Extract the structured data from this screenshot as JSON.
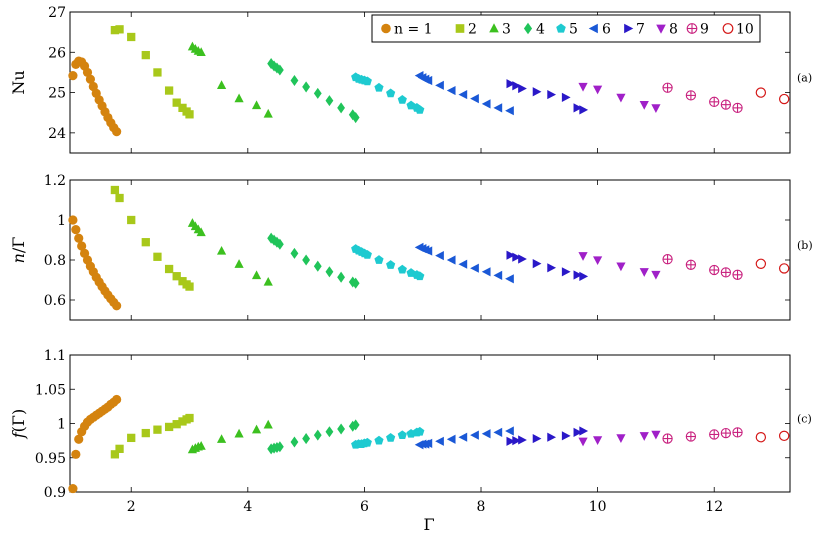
{
  "figure": {
    "xlabel": "Γ",
    "legend_prefix": "n",
    "legend_equals": "="
  },
  "chart_data": [
    {
      "type": "scatter",
      "panel_tag": "(a)",
      "ylabel": "Nu",
      "xlim": [
        0.95,
        13.3
      ],
      "ylim": [
        23.5,
        27
      ],
      "xticks": [
        2,
        4,
        6,
        8,
        10,
        12
      ],
      "yticks": [
        24,
        25,
        26,
        27
      ],
      "grid": false,
      "legend_placement": "top-right",
      "series": [
        {
          "name": "1",
          "color": "#d4830f",
          "marker": "circle",
          "x": [
            1.0,
            1.05,
            1.1,
            1.15,
            1.2,
            1.25,
            1.3,
            1.35,
            1.4,
            1.45,
            1.5,
            1.55,
            1.6,
            1.65,
            1.7,
            1.75
          ],
          "y": [
            25.42,
            25.7,
            25.78,
            25.76,
            25.66,
            25.5,
            25.33,
            25.15,
            24.98,
            24.82,
            24.67,
            24.52,
            24.38,
            24.25,
            24.13,
            24.03
          ]
        },
        {
          "name": "2",
          "color": "#a8c81a",
          "marker": "square",
          "x": [
            1.72,
            1.8,
            2.0,
            2.25,
            2.45,
            2.65,
            2.78,
            2.88,
            2.95,
            3.0
          ],
          "y": [
            26.55,
            26.57,
            26.38,
            25.93,
            25.5,
            25.05,
            24.75,
            24.62,
            24.53,
            24.46
          ]
        },
        {
          "name": "3",
          "color": "#3cc01f",
          "marker": "triangle-up",
          "x": [
            3.05,
            3.1,
            3.15,
            3.2,
            3.55,
            3.85,
            4.15,
            4.35
          ],
          "y": [
            26.14,
            26.08,
            26.03,
            26.0,
            25.18,
            24.85,
            24.68,
            24.47
          ]
        },
        {
          "name": "4",
          "color": "#20c45a",
          "marker": "diamond",
          "x": [
            4.4,
            4.45,
            4.5,
            4.55,
            4.8,
            5.0,
            5.2,
            5.4,
            5.6,
            5.8,
            5.85
          ],
          "y": [
            25.72,
            25.66,
            25.61,
            25.56,
            25.3,
            25.14,
            24.98,
            24.8,
            24.62,
            24.45,
            24.38
          ]
        },
        {
          "name": "5",
          "color": "#1ecad0",
          "marker": "pentagon",
          "x": [
            5.85,
            5.9,
            5.95,
            6.0,
            6.05,
            6.25,
            6.45,
            6.65,
            6.8,
            6.9,
            6.95
          ],
          "y": [
            25.38,
            25.34,
            25.32,
            25.3,
            25.28,
            25.12,
            24.98,
            24.82,
            24.68,
            24.62,
            24.57
          ]
        },
        {
          "name": "6",
          "color": "#1a58d6",
          "marker": "triangle-left",
          "x": [
            6.95,
            7.0,
            7.05,
            7.1,
            7.3,
            7.5,
            7.7,
            7.9,
            8.1,
            8.3,
            8.5
          ],
          "y": [
            25.42,
            25.37,
            25.33,
            25.3,
            25.18,
            25.05,
            24.95,
            24.85,
            24.72,
            24.62,
            24.55
          ]
        },
        {
          "name": "7",
          "color": "#2a18c8",
          "marker": "triangle-right",
          "x": [
            8.5,
            8.6,
            8.7,
            8.95,
            9.2,
            9.45,
            9.65,
            9.75
          ],
          "y": [
            25.22,
            25.17,
            25.1,
            25.02,
            24.95,
            24.88,
            24.62,
            24.57
          ]
        },
        {
          "name": "8",
          "color": "#a020c8",
          "marker": "triangle-down",
          "x": [
            9.75,
            10.0,
            10.4,
            10.8,
            11.0
          ],
          "y": [
            25.15,
            25.08,
            24.88,
            24.7,
            24.62
          ]
        },
        {
          "name": "9",
          "color": "#c8207e",
          "marker": "circle-plus",
          "x": [
            11.2,
            11.6,
            12.0,
            12.2,
            12.4
          ],
          "y": [
            25.12,
            24.93,
            24.77,
            24.7,
            24.62
          ]
        },
        {
          "name": "10",
          "color": "#d41818",
          "marker": "circle-open",
          "x": [
            12.8,
            13.2
          ],
          "y": [
            25.0,
            24.84
          ]
        }
      ]
    },
    {
      "type": "scatter",
      "panel_tag": "(b)",
      "ylabel": "n/Γ",
      "xlim": [
        0.95,
        13.3
      ],
      "ylim": [
        0.5,
        1.2
      ],
      "xticks": [
        2,
        4,
        6,
        8,
        10,
        12
      ],
      "yticks": [
        0.6,
        0.8,
        1,
        1.2
      ],
      "yticklabels": [
        "0.6",
        "0.8",
        "1",
        "1.2"
      ],
      "grid": false,
      "series": [
        {
          "name": "1",
          "color": "#d4830f",
          "marker": "circle",
          "x": [
            1.0,
            1.05,
            1.1,
            1.15,
            1.2,
            1.25,
            1.3,
            1.35,
            1.4,
            1.45,
            1.5,
            1.55,
            1.6,
            1.65,
            1.7,
            1.75
          ],
          "y": [
            1.0,
            0.952,
            0.909,
            0.87,
            0.833,
            0.8,
            0.769,
            0.741,
            0.714,
            0.69,
            0.667,
            0.645,
            0.625,
            0.606,
            0.588,
            0.571
          ]
        },
        {
          "name": "2",
          "color": "#a8c81a",
          "marker": "square",
          "x": [
            1.72,
            1.8,
            2.0,
            2.25,
            2.45,
            2.65,
            2.78,
            2.88,
            2.95,
            3.0
          ],
          "y": [
            1.15,
            1.11,
            1.0,
            0.889,
            0.816,
            0.755,
            0.719,
            0.694,
            0.678,
            0.667
          ]
        },
        {
          "name": "3",
          "color": "#3cc01f",
          "marker": "triangle-up",
          "x": [
            3.05,
            3.1,
            3.15,
            3.2,
            3.55,
            3.85,
            4.15,
            4.35
          ],
          "y": [
            0.984,
            0.968,
            0.952,
            0.938,
            0.845,
            0.779,
            0.723,
            0.69
          ]
        },
        {
          "name": "4",
          "color": "#20c45a",
          "marker": "diamond",
          "x": [
            4.4,
            4.45,
            4.5,
            4.55,
            4.8,
            5.0,
            5.2,
            5.4,
            5.6,
            5.8,
            5.85
          ],
          "y": [
            0.909,
            0.899,
            0.889,
            0.879,
            0.833,
            0.8,
            0.769,
            0.741,
            0.714,
            0.69,
            0.684
          ]
        },
        {
          "name": "5",
          "color": "#1ecad0",
          "marker": "pentagon",
          "x": [
            5.85,
            5.9,
            5.95,
            6.0,
            6.05,
            6.25,
            6.45,
            6.65,
            6.8,
            6.9,
            6.95
          ],
          "y": [
            0.855,
            0.847,
            0.84,
            0.833,
            0.826,
            0.8,
            0.775,
            0.752,
            0.735,
            0.725,
            0.719
          ]
        },
        {
          "name": "6",
          "color": "#1a58d6",
          "marker": "triangle-left",
          "x": [
            6.95,
            7.0,
            7.05,
            7.1,
            7.3,
            7.5,
            7.7,
            7.9,
            8.1,
            8.3,
            8.5
          ],
          "y": [
            0.863,
            0.857,
            0.851,
            0.845,
            0.822,
            0.8,
            0.779,
            0.759,
            0.741,
            0.723,
            0.706
          ]
        },
        {
          "name": "7",
          "color": "#2a18c8",
          "marker": "triangle-right",
          "x": [
            8.5,
            8.6,
            8.7,
            8.95,
            9.2,
            9.45,
            9.65,
            9.75
          ],
          "y": [
            0.824,
            0.814,
            0.805,
            0.782,
            0.761,
            0.741,
            0.725,
            0.718
          ]
        },
        {
          "name": "8",
          "color": "#a020c8",
          "marker": "triangle-down",
          "x": [
            9.75,
            10.0,
            10.4,
            10.8,
            11.0
          ],
          "y": [
            0.821,
            0.8,
            0.769,
            0.741,
            0.727
          ]
        },
        {
          "name": "9",
          "color": "#c8207e",
          "marker": "circle-plus",
          "x": [
            11.2,
            11.6,
            12.0,
            12.2,
            12.4
          ],
          "y": [
            0.804,
            0.776,
            0.75,
            0.738,
            0.726
          ]
        },
        {
          "name": "10",
          "color": "#d41818",
          "marker": "circle-open",
          "x": [
            12.8,
            13.2
          ],
          "y": [
            0.781,
            0.758
          ]
        }
      ]
    },
    {
      "type": "scatter",
      "panel_tag": "(c)",
      "ylabel": "f(Γ)",
      "xlim": [
        0.95,
        13.3
      ],
      "ylim": [
        0.9,
        1.1
      ],
      "xticks": [
        2,
        4,
        6,
        8,
        10,
        12
      ],
      "xticklabels": [
        "2",
        "4",
        "6",
        "8",
        "10",
        "12"
      ],
      "yticks": [
        0.9,
        0.95,
        1,
        1.05,
        1.1
      ],
      "yticklabels": [
        "0.9",
        "0.95",
        "1",
        "1.05",
        "1.1"
      ],
      "grid": false,
      "series": [
        {
          "name": "1",
          "color": "#d4830f",
          "marker": "circle",
          "x": [
            1.0,
            1.05,
            1.1,
            1.15,
            1.2,
            1.25,
            1.3,
            1.35,
            1.4,
            1.45,
            1.5,
            1.55,
            1.6,
            1.65,
            1.7,
            1.75
          ],
          "y": [
            0.905,
            0.955,
            0.977,
            0.988,
            0.996,
            1.002,
            1.006,
            1.009,
            1.012,
            1.015,
            1.018,
            1.021,
            1.024,
            1.028,
            1.031,
            1.035
          ]
        },
        {
          "name": "2",
          "color": "#a8c81a",
          "marker": "square",
          "x": [
            1.72,
            1.8,
            2.0,
            2.25,
            2.45,
            2.65,
            2.78,
            2.88,
            2.95,
            3.0
          ],
          "y": [
            0.955,
            0.963,
            0.979,
            0.986,
            0.991,
            0.995,
            0.999,
            1.003,
            1.006,
            1.008
          ]
        },
        {
          "name": "3",
          "color": "#3cc01f",
          "marker": "triangle-up",
          "x": [
            3.05,
            3.1,
            3.15,
            3.2,
            3.55,
            3.85,
            4.15,
            4.35
          ],
          "y": [
            0.962,
            0.964,
            0.966,
            0.967,
            0.977,
            0.985,
            0.991,
            0.998
          ]
        },
        {
          "name": "4",
          "color": "#20c45a",
          "marker": "diamond",
          "x": [
            4.4,
            4.45,
            4.5,
            4.55,
            4.8,
            5.0,
            5.2,
            5.4,
            5.6,
            5.8,
            5.85
          ],
          "y": [
            0.963,
            0.964,
            0.965,
            0.966,
            0.973,
            0.978,
            0.983,
            0.988,
            0.992,
            0.996,
            0.998
          ]
        },
        {
          "name": "5",
          "color": "#1ecad0",
          "marker": "pentagon",
          "x": [
            5.85,
            5.9,
            5.95,
            6.0,
            6.05,
            6.25,
            6.45,
            6.65,
            6.8,
            6.9,
            6.95
          ],
          "y": [
            0.969,
            0.97,
            0.97,
            0.971,
            0.972,
            0.975,
            0.979,
            0.983,
            0.985,
            0.987,
            0.988
          ]
        },
        {
          "name": "6",
          "color": "#1a58d6",
          "marker": "triangle-left",
          "x": [
            6.95,
            7.0,
            7.05,
            7.1,
            7.3,
            7.5,
            7.7,
            7.9,
            8.1,
            8.3,
            8.5
          ],
          "y": [
            0.969,
            0.97,
            0.97,
            0.971,
            0.974,
            0.977,
            0.98,
            0.983,
            0.985,
            0.987,
            0.989
          ]
        },
        {
          "name": "7",
          "color": "#2a18c8",
          "marker": "triangle-right",
          "x": [
            8.5,
            8.6,
            8.7,
            8.95,
            9.2,
            9.45,
            9.65,
            9.75
          ],
          "y": [
            0.974,
            0.975,
            0.976,
            0.978,
            0.98,
            0.982,
            0.987,
            0.989
          ]
        },
        {
          "name": "8",
          "color": "#a020c8",
          "marker": "triangle-down",
          "x": [
            9.75,
            10.0,
            10.4,
            10.8,
            11.0
          ],
          "y": [
            0.974,
            0.976,
            0.979,
            0.982,
            0.984
          ]
        },
        {
          "name": "9",
          "color": "#c8207e",
          "marker": "circle-plus",
          "x": [
            11.2,
            11.6,
            12.0,
            12.2,
            12.4
          ],
          "y": [
            0.978,
            0.981,
            0.984,
            0.986,
            0.987
          ]
        },
        {
          "name": "10",
          "color": "#d41818",
          "marker": "circle-open",
          "x": [
            12.8,
            13.2
          ],
          "y": [
            0.98,
            0.982
          ]
        }
      ]
    }
  ]
}
